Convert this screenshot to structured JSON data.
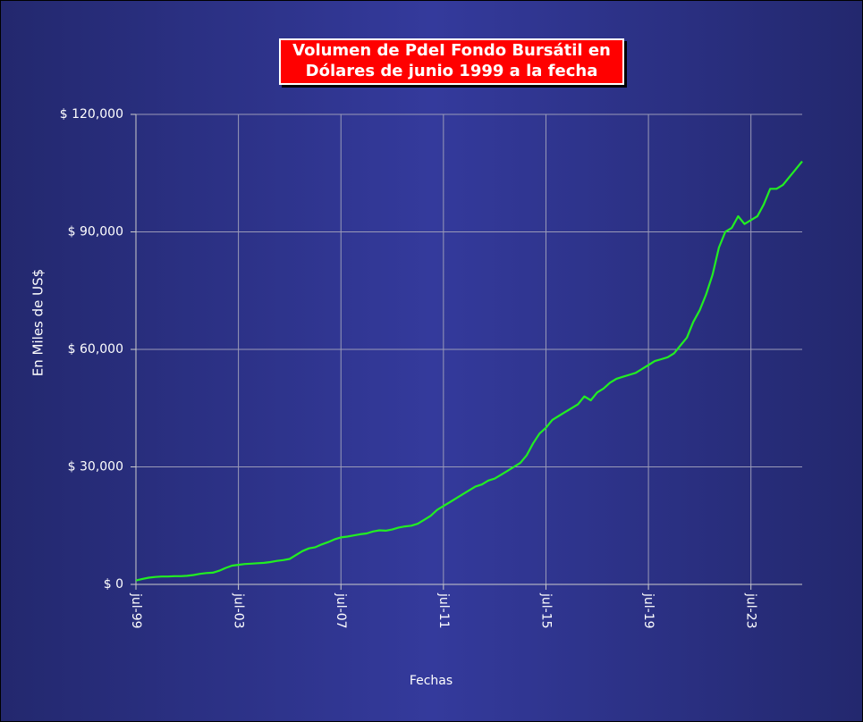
{
  "chart_data": {
    "type": "line",
    "title": [
      "Volumen de PdeI Fondo Bursátil en",
      "Dólares de junio 1999 a la fecha"
    ],
    "xlabel": "Fechas",
    "ylabel": "En Miles de US$",
    "categories": [
      "jul-99",
      null,
      null,
      null,
      null,
      null,
      null,
      null,
      null,
      null,
      null,
      null,
      null,
      null,
      null,
      null,
      "jul-03",
      null,
      null,
      null,
      null,
      null,
      null,
      null,
      null,
      null,
      null,
      null,
      null,
      null,
      null,
      null,
      "jul-07",
      null,
      null,
      null,
      null,
      null,
      null,
      null,
      null,
      null,
      null,
      null,
      null,
      null,
      null,
      null,
      "jul-11",
      null,
      null,
      null,
      null,
      null,
      null,
      null,
      null,
      null,
      null,
      null,
      null,
      null,
      null,
      null,
      "jul-15",
      null,
      null,
      null,
      null,
      null,
      null,
      null,
      null,
      null,
      null,
      null,
      null,
      null,
      null,
      null,
      "jul-19",
      null,
      null,
      null,
      null,
      null,
      null,
      null,
      null,
      null,
      null,
      null,
      null,
      null,
      null,
      null,
      "jul-23",
      null,
      null,
      null,
      null,
      null,
      null,
      null,
      null
    ],
    "values": [
      1000,
      1400,
      1700,
      1900,
      2000,
      2000,
      2100,
      2100,
      2200,
      2400,
      2700,
      2900,
      3000,
      3500,
      4200,
      4800,
      5000,
      5200,
      5300,
      5400,
      5500,
      5700,
      6000,
      6200,
      6500,
      7500,
      8500,
      9200,
      9500,
      10200,
      10800,
      11500,
      12000,
      12200,
      12500,
      12800,
      13000,
      13500,
      13800,
      13700,
      14000,
      14500,
      14800,
      15000,
      15500,
      16500,
      17500,
      19000,
      20000,
      21000,
      22000,
      23000,
      24000,
      25000,
      25500,
      26500,
      27000,
      28000,
      29000,
      30000,
      31000,
      33000,
      36000,
      38500,
      40000,
      42000,
      43000,
      44000,
      45000,
      46000,
      48000,
      47000,
      49000,
      50000,
      51500,
      52500,
      53000,
      53500,
      54000,
      55000,
      56000,
      57000,
      57500,
      58000,
      59000,
      61000,
      63000,
      67000,
      70000,
      74000,
      79000,
      86000,
      90000,
      91000,
      94000,
      92000,
      93000,
      94000,
      97000,
      101000,
      101000,
      102000,
      104000,
      106000,
      108000
    ],
    "color": "#22ee22",
    "ylim": [
      0,
      120000
    ],
    "yticks": [
      {
        "value": 0,
        "label": "$ 0"
      },
      {
        "value": 30000,
        "label": "$ 30,000"
      },
      {
        "value": 60000,
        "label": "$ 60,000"
      },
      {
        "value": 90000,
        "label": "$ 90,000"
      },
      {
        "value": 120000,
        "label": "$ 120,000"
      }
    ],
    "grid": true
  }
}
